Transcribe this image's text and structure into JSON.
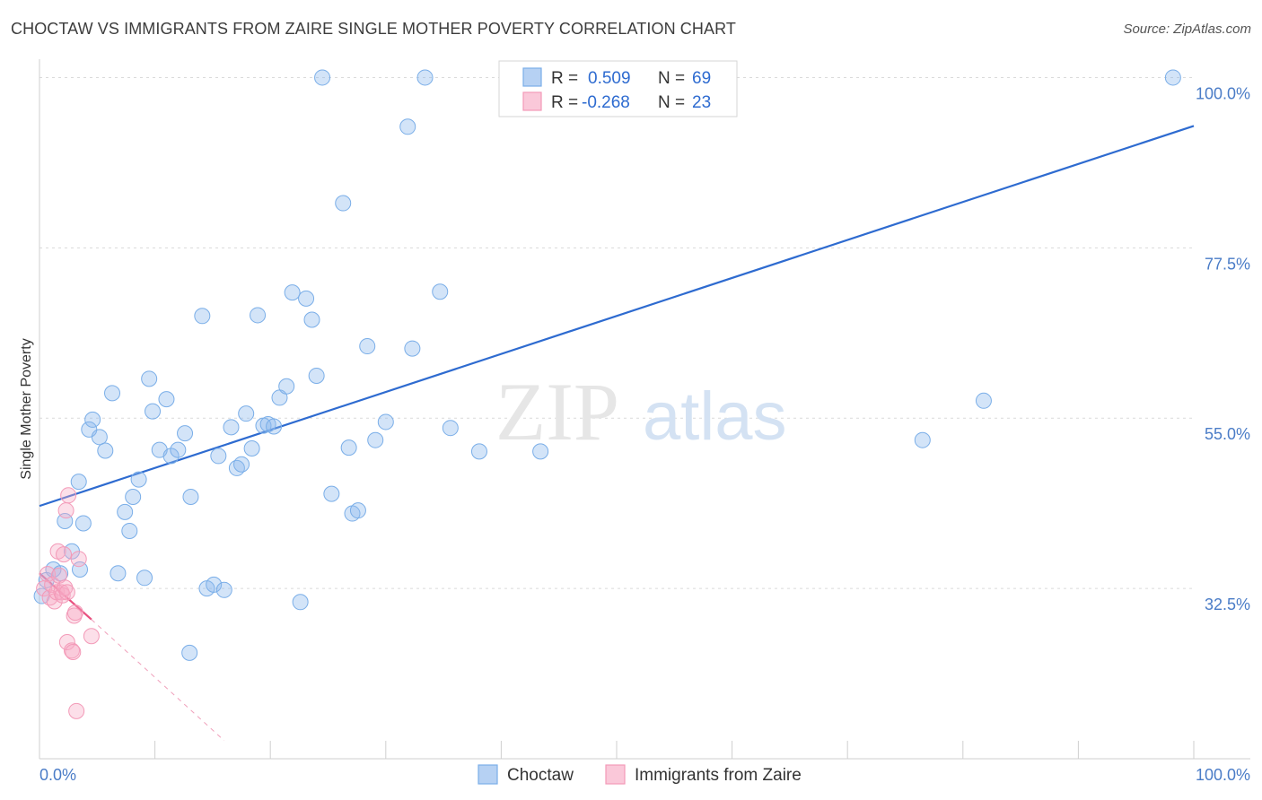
{
  "title": "CHOCTAW VS IMMIGRANTS FROM ZAIRE SINGLE MOTHER POVERTY CORRELATION CHART",
  "source": "Source: ZipAtlas.com",
  "watermark": {
    "zip": "ZIP",
    "atlas": "atlas"
  },
  "colors": {
    "blue": "#7aaee8",
    "blue_line": "#2e6bd0",
    "pink": "#f39ab8",
    "pink_line": "#e8507f",
    "grid": "#d8d8d8",
    "tick_text": "#4a7cc7"
  },
  "legend": {
    "rows": [
      {
        "r_label": "R =",
        "r_value": "0.509",
        "n_label": "N =",
        "n_value": "69"
      },
      {
        "r_label": "R =",
        "r_value": "-0.268",
        "n_label": "N =",
        "n_value": "23"
      }
    ]
  },
  "bottom_legend": [
    "Choctaw",
    "Immigrants from Zaire"
  ],
  "chart_data": {
    "type": "scatter",
    "title": "CHOCTAW VS IMMIGRANTS FROM ZAIRE SINGLE MOTHER POVERTY CORRELATION CHART",
    "xlabel": "",
    "ylabel": "Single Mother Poverty",
    "xlim": [
      0,
      100
    ],
    "ylim": [
      10,
      101
    ],
    "x_tick_labels": [
      "0.0%",
      "100.0%"
    ],
    "y_ticks": [
      32.5,
      55.0,
      77.5,
      100.0
    ],
    "y_tick_labels": [
      "32.5%",
      "55.0%",
      "77.5%",
      "100.0%"
    ],
    "grid": true,
    "legend_position": "top-center",
    "series": [
      {
        "name": "Choctaw",
        "color": "#7aaee8",
        "trend": {
          "x": [
            0,
            100
          ],
          "y": [
            43.4,
            93.6
          ]
        },
        "points": [
          [
            0.2,
            31.5
          ],
          [
            0.6,
            33.6
          ],
          [
            1.2,
            35.0
          ],
          [
            1.8,
            34.5
          ],
          [
            2.2,
            41.4
          ],
          [
            2.8,
            37.4
          ],
          [
            3.4,
            46.6
          ],
          [
            3.8,
            41.1
          ],
          [
            4.3,
            53.5
          ],
          [
            4.6,
            54.8
          ],
          [
            5.2,
            52.5
          ],
          [
            5.7,
            50.7
          ],
          [
            6.3,
            58.3
          ],
          [
            6.8,
            34.5
          ],
          [
            7.4,
            42.6
          ],
          [
            7.8,
            40.1
          ],
          [
            8.1,
            44.6
          ],
          [
            8.6,
            46.9
          ],
          [
            9.1,
            33.9
          ],
          [
            9.5,
            60.2
          ],
          [
            9.8,
            55.9
          ],
          [
            10.4,
            50.8
          ],
          [
            11.0,
            57.5
          ],
          [
            11.4,
            50.0
          ],
          [
            12.0,
            50.8
          ],
          [
            12.6,
            53.0
          ],
          [
            13.1,
            44.6
          ],
          [
            14.1,
            68.5
          ],
          [
            14.5,
            32.5
          ],
          [
            15.1,
            33.0
          ],
          [
            15.5,
            50.0
          ],
          [
            16.0,
            32.3
          ],
          [
            16.6,
            53.8
          ],
          [
            17.1,
            48.4
          ],
          [
            17.5,
            48.9
          ],
          [
            17.9,
            55.6
          ],
          [
            18.4,
            51.0
          ],
          [
            18.9,
            68.6
          ],
          [
            19.4,
            54.0
          ],
          [
            19.8,
            54.2
          ],
          [
            20.3,
            53.9
          ],
          [
            20.8,
            57.7
          ],
          [
            21.4,
            59.2
          ],
          [
            21.9,
            71.6
          ],
          [
            22.6,
            30.7
          ],
          [
            23.1,
            70.8
          ],
          [
            23.6,
            68.0
          ],
          [
            24.0,
            60.6
          ],
          [
            24.5,
            100.0
          ],
          [
            25.3,
            45.0
          ],
          [
            26.3,
            83.4
          ],
          [
            26.8,
            51.1
          ],
          [
            27.1,
            42.4
          ],
          [
            27.6,
            42.8
          ],
          [
            28.4,
            64.5
          ],
          [
            29.1,
            52.1
          ],
          [
            30.0,
            54.5
          ],
          [
            31.9,
            93.5
          ],
          [
            32.3,
            64.2
          ],
          [
            33.4,
            100.0
          ],
          [
            34.7,
            71.7
          ],
          [
            35.6,
            53.7
          ],
          [
            38.1,
            50.6
          ],
          [
            43.4,
            50.6
          ],
          [
            13.0,
            24.0
          ],
          [
            76.5,
            52.1
          ],
          [
            81.8,
            57.3
          ],
          [
            98.2,
            100.0
          ],
          [
            3.5,
            35.0
          ]
        ]
      },
      {
        "name": "Immigrants from Zaire",
        "color": "#f39ab8",
        "trend": {
          "x": [
            0,
            4.5
          ],
          "y": [
            34.5,
            28.4
          ]
        },
        "trend_ext": {
          "x": [
            4.5,
            16
          ],
          "y": [
            28.4,
            12.4
          ]
        },
        "points": [
          [
            0.4,
            32.5
          ],
          [
            0.7,
            34.4
          ],
          [
            0.9,
            31.3
          ],
          [
            1.1,
            33.0
          ],
          [
            1.3,
            30.8
          ],
          [
            1.5,
            32.0
          ],
          [
            1.6,
            37.4
          ],
          [
            1.7,
            34.2
          ],
          [
            1.9,
            32.0
          ],
          [
            2.0,
            31.6
          ],
          [
            2.1,
            37.0
          ],
          [
            2.2,
            32.6
          ],
          [
            2.4,
            32.0
          ],
          [
            2.3,
            42.8
          ],
          [
            2.4,
            25.4
          ],
          [
            2.5,
            44.8
          ],
          [
            2.8,
            24.3
          ],
          [
            2.9,
            24.1
          ],
          [
            3.0,
            28.9
          ],
          [
            3.1,
            29.3
          ],
          [
            3.2,
            16.3
          ],
          [
            3.4,
            36.4
          ],
          [
            4.5,
            26.2
          ]
        ]
      }
    ]
  }
}
